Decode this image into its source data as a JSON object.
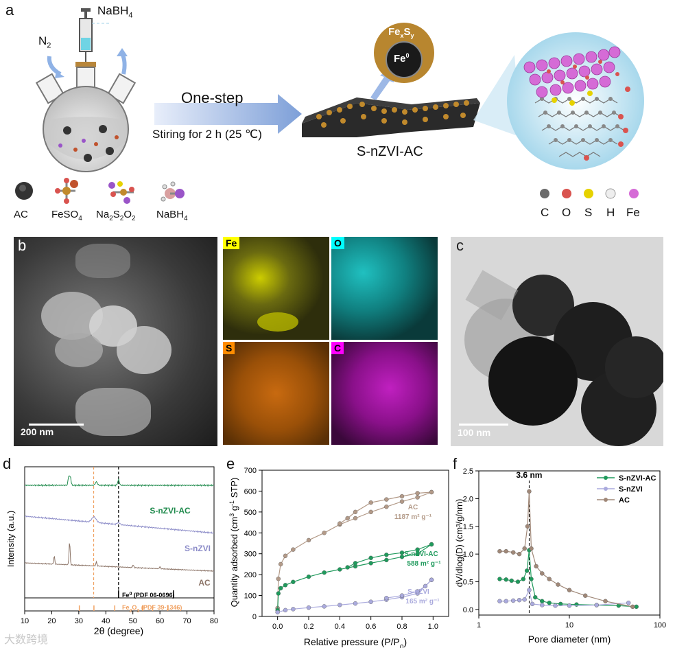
{
  "panel_a": {
    "label": "a",
    "reagent_top": "NaBH",
    "reagent_top_sub": "4",
    "gas": "N",
    "gas_sub": "2",
    "step_title": "One-step",
    "step_condition": "Stiring for 2 h (25 ℃)",
    "product": "S-nZVI-AC",
    "core_shell_outer": "Fe",
    "core_shell_outer_x": "x",
    "core_shell_outer_S": "S",
    "core_shell_outer_y": "y",
    "core_shell_inner": "Fe",
    "core_shell_inner_sup": "0",
    "legend_reagents": [
      {
        "text": "AC",
        "sub": ""
      },
      {
        "text": "FeSO",
        "sub": "4"
      },
      {
        "text": "Na",
        "sub": "2",
        "text2": "S",
        "sub2": "2",
        "text3": "O",
        "sub3": "2"
      },
      {
        "text": "NaBH",
        "sub": "4"
      }
    ],
    "legend_atoms": [
      {
        "label": "C",
        "color": "#6b6b6b"
      },
      {
        "label": "O",
        "color": "#d9534f"
      },
      {
        "label": "S",
        "color": "#e6d200"
      },
      {
        "label": "H",
        "color": "#e8e8e8"
      },
      {
        "label": "Fe",
        "color": "#d56bd6"
      }
    ]
  },
  "panel_b": {
    "label": "b",
    "scale": "200 nm",
    "maps": [
      {
        "element": "Fe",
        "tag_color": "#ffff00",
        "base": "#3a3a10",
        "spot": "#d8d800"
      },
      {
        "element": "O",
        "tag_color": "#00ffff",
        "base": "#104040",
        "spot": "#20d0d0"
      },
      {
        "element": "S",
        "tag_color": "#ff8c00",
        "base": "#4a2a05",
        "spot": "#d06a10"
      },
      {
        "element": "C",
        "tag_color": "#ff00ff",
        "base": "#3a0a3a",
        "spot": "#c020c0"
      }
    ]
  },
  "panel_c": {
    "label": "c",
    "scale": "100 nm"
  },
  "chart_data": [
    {
      "panel": "d",
      "type": "line",
      "xlabel": "2θ (degree)",
      "ylabel": "Intensity (a.u.)",
      "xlim": [
        10,
        80
      ],
      "xticks": [
        10,
        20,
        30,
        40,
        50,
        60,
        70,
        80
      ],
      "series": [
        {
          "name": "S-nZVI-AC",
          "color": "#1f8a4c"
        },
        {
          "name": "S-nZVI",
          "color": "#8c8cc8"
        },
        {
          "name": "AC",
          "color": "#8b7366"
        }
      ],
      "reference_lines": [
        {
          "x": 35.5,
          "color": "#f0a060"
        },
        {
          "x": 44.7,
          "color": "#000000"
        }
      ],
      "references": [
        {
          "phase": "Fe",
          "sup": "0",
          "pdf": " (PDF 06-0696)",
          "peaks": [
            44.7,
            65.0
          ],
          "color": "#000000"
        },
        {
          "phase": "Fe",
          "sub": "2",
          "phase2": "O",
          "sub2": "3",
          "pdf": " (PDF 39-1346)",
          "peaks": [
            30.2,
            35.6,
            43.3,
            53.7,
            57.3,
            62.9
          ],
          "color": "#f0a060"
        }
      ]
    },
    {
      "panel": "e",
      "type": "scatter",
      "xlabel": "Relative pressure (P/P",
      "xlabel_sub": "0",
      "xlabel_end": ")",
      "ylabel": "Quantity adsorbed (cm",
      "xlim": [
        -0.1,
        1.1
      ],
      "ylim": [
        0,
        700
      ],
      "xticks": [
        0.0,
        0.2,
        0.4,
        0.6,
        0.8,
        1.0
      ],
      "yticks": [
        0,
        100,
        200,
        300,
        400,
        500,
        600,
        700
      ],
      "series": [
        {
          "name": "AC",
          "bet": "1187 m² g⁻¹",
          "color": "#b39a88",
          "adsorption": [
            [
              0.0,
              40
            ],
            [
              0.005,
              180
            ],
            [
              0.02,
              250
            ],
            [
              0.05,
              290
            ],
            [
              0.1,
              320
            ],
            [
              0.2,
              365
            ],
            [
              0.3,
              400
            ],
            [
              0.4,
              440
            ],
            [
              0.5,
              470
            ],
            [
              0.6,
              500
            ],
            [
              0.7,
              525
            ],
            [
              0.8,
              550
            ],
            [
              0.9,
              570
            ],
            [
              0.99,
              595
            ]
          ],
          "desorption": [
            [
              0.99,
              595
            ],
            [
              0.9,
              590
            ],
            [
              0.8,
              575
            ],
            [
              0.7,
              560
            ],
            [
              0.6,
              545
            ],
            [
              0.5,
              500
            ],
            [
              0.45,
              470
            ],
            [
              0.4,
              445
            ]
          ]
        },
        {
          "name": "S-nZVI-AC",
          "bet": "588 m² g⁻¹",
          "color": "#1f9a5c",
          "adsorption": [
            [
              0.0,
              30
            ],
            [
              0.005,
              110
            ],
            [
              0.02,
              135
            ],
            [
              0.05,
              150
            ],
            [
              0.1,
              165
            ],
            [
              0.2,
              190
            ],
            [
              0.3,
              210
            ],
            [
              0.4,
              225
            ],
            [
              0.5,
              240
            ],
            [
              0.6,
              255
            ],
            [
              0.7,
              270
            ],
            [
              0.8,
              285
            ],
            [
              0.9,
              300
            ],
            [
              0.99,
              345
            ]
          ],
          "desorption": [
            [
              0.99,
              345
            ],
            [
              0.9,
              320
            ],
            [
              0.8,
              305
            ],
            [
              0.7,
              295
            ],
            [
              0.6,
              280
            ],
            [
              0.5,
              255
            ],
            [
              0.45,
              235
            ]
          ]
        },
        {
          "name": "S-nZVI",
          "bet": "165 m² g⁻¹",
          "color": "#aaaadd",
          "adsorption": [
            [
              0.0,
              20
            ],
            [
              0.05,
              30
            ],
            [
              0.1,
              35
            ],
            [
              0.2,
              42
            ],
            [
              0.3,
              48
            ],
            [
              0.4,
              55
            ],
            [
              0.5,
              62
            ],
            [
              0.6,
              70
            ],
            [
              0.7,
              80
            ],
            [
              0.8,
              92
            ],
            [
              0.9,
              110
            ],
            [
              0.99,
              175
            ]
          ],
          "desorption": [
            [
              0.99,
              175
            ],
            [
              0.95,
              145
            ],
            [
              0.9,
              120
            ],
            [
              0.8,
              100
            ],
            [
              0.7,
              88
            ]
          ]
        }
      ]
    },
    {
      "panel": "f",
      "type": "line",
      "xlabel": "Pore diameter (nm)",
      "ylabel": "dV/dlog(D) (cm³/g/nm)",
      "xscale": "log",
      "xlim": [
        1,
        100
      ],
      "ylim": [
        -0.1,
        2.5
      ],
      "xticks": [
        1,
        10,
        100
      ],
      "yticks": [
        0.0,
        0.5,
        1.0,
        1.5,
        2.0,
        2.5
      ],
      "annotation": "3.6 nm",
      "annotation_x": 3.6,
      "series": [
        {
          "name": "S-nZVI-AC",
          "color": "#1f9a5c",
          "points": [
            [
              1.7,
              0.55
            ],
            [
              2.0,
              0.54
            ],
            [
              2.3,
              0.52
            ],
            [
              2.7,
              0.5
            ],
            [
              3.1,
              0.55
            ],
            [
              3.4,
              0.7
            ],
            [
              3.6,
              1.07
            ],
            [
              3.8,
              0.55
            ],
            [
              4.2,
              0.22
            ],
            [
              5,
              0.15
            ],
            [
              6,
              0.12
            ],
            [
              8,
              0.1
            ],
            [
              12,
              0.09
            ],
            [
              20,
              0.08
            ],
            [
              35,
              0.07
            ],
            [
              55,
              0.05
            ]
          ]
        },
        {
          "name": "S-nZVI",
          "color": "#aaaadd",
          "points": [
            [
              1.7,
              0.15
            ],
            [
              2.0,
              0.15
            ],
            [
              2.4,
              0.16
            ],
            [
              2.8,
              0.17
            ],
            [
              3.2,
              0.18
            ],
            [
              3.6,
              0.35
            ],
            [
              3.9,
              0.1
            ],
            [
              5,
              0.08
            ],
            [
              7,
              0.07
            ],
            [
              10,
              0.07
            ],
            [
              20,
              0.08
            ],
            [
              45,
              0.12
            ]
          ]
        },
        {
          "name": "AC",
          "color": "#a08878",
          "points": [
            [
              1.7,
              1.05
            ],
            [
              2.0,
              1.05
            ],
            [
              2.4,
              1.03
            ],
            [
              2.8,
              1.0
            ],
            [
              3.2,
              1.1
            ],
            [
              3.45,
              1.5
            ],
            [
              3.6,
              2.13
            ],
            [
              3.8,
              1.1
            ],
            [
              4.3,
              0.78
            ],
            [
              5,
              0.65
            ],
            [
              6,
              0.55
            ],
            [
              7.5,
              0.45
            ],
            [
              10,
              0.35
            ],
            [
              15,
              0.25
            ],
            [
              25,
              0.15
            ],
            [
              50,
              0.05
            ]
          ]
        }
      ]
    }
  ],
  "watermark": "大数跨境"
}
